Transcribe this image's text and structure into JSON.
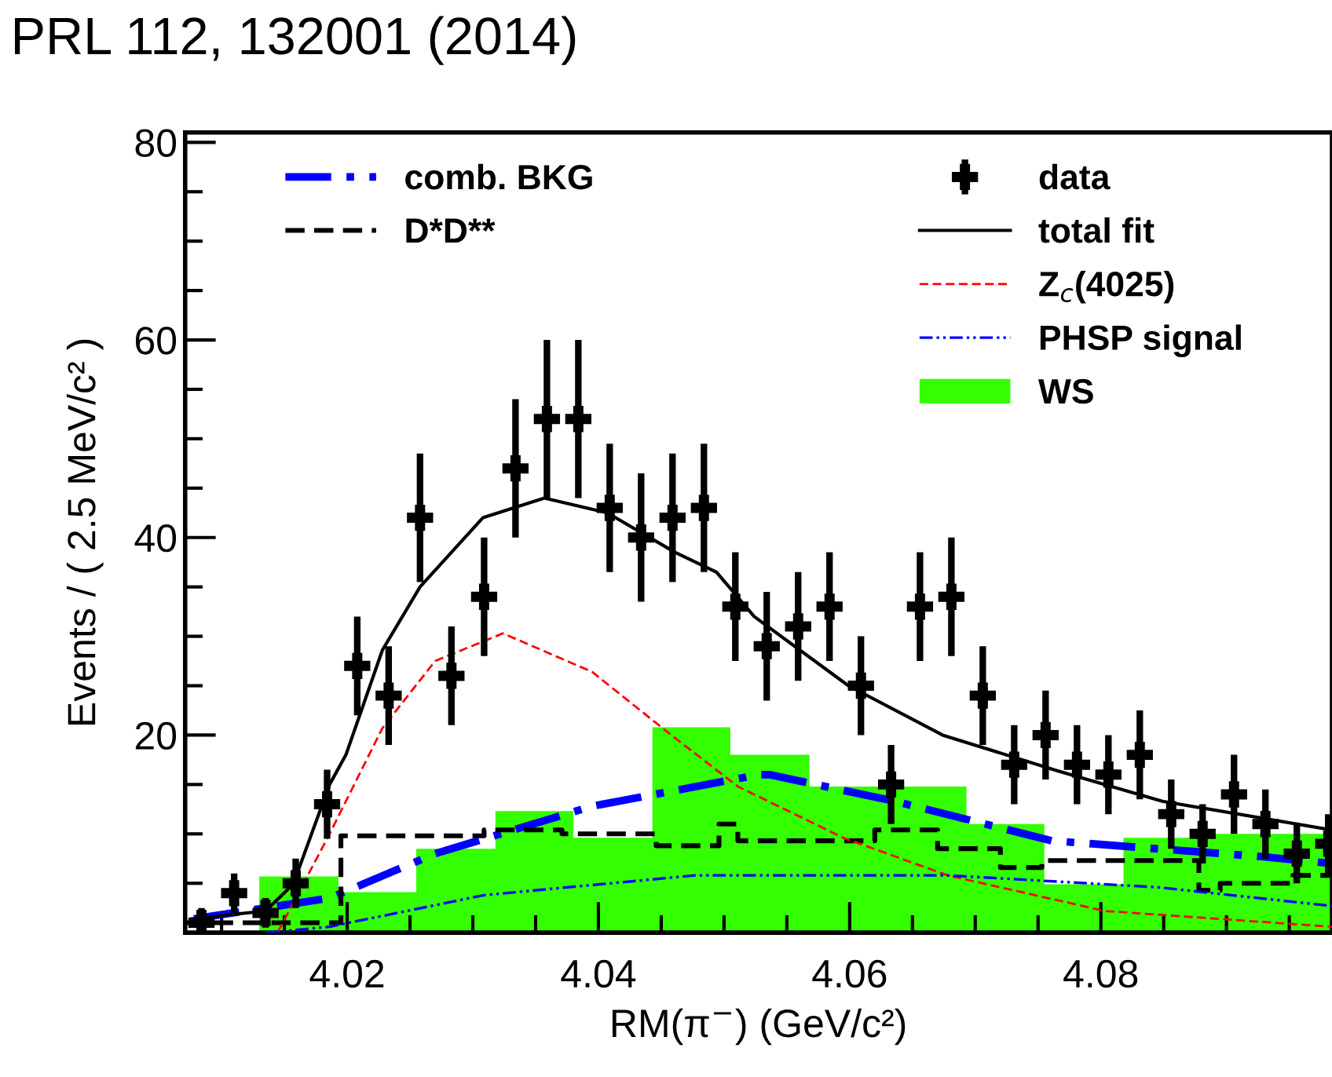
{
  "chart_data": {
    "type": "line",
    "xlabel": "RM(π$^{−}$) (GeV/c²)",
    "ylabel": "Events / ( 2.5 MeV/c² )",
    "annotations": [
      "PRL 112, 132001 (2014)"
    ],
    "xlim": [
      4.0071,
      4.0984
    ],
    "ylim": [
      0,
      81
    ],
    "xticks": [
      {
        "value": 4.01,
        "label": null
      },
      {
        "value": 4.015,
        "label": null
      },
      4.02,
      {
        "value": 4.025,
        "label": null
      },
      {
        "value": 4.03,
        "label": null
      },
      {
        "value": 4.035,
        "label": null
      },
      4.04,
      {
        "value": 4.045,
        "label": null
      },
      {
        "value": 4.05,
        "label": null
      },
      {
        "value": 4.055,
        "label": null
      },
      4.06,
      {
        "value": 4.065,
        "label": null
      },
      {
        "value": 4.07,
        "label": null
      },
      {
        "value": 4.075,
        "label": null
      },
      4.08,
      {
        "value": 4.085,
        "label": null
      },
      {
        "value": 4.09,
        "label": null
      },
      {
        "value": 4.095,
        "label": null
      }
    ],
    "yticks": [
      {
        "value": 5,
        "label": null
      },
      {
        "value": 10,
        "label": null
      },
      {
        "value": 15,
        "label": null
      },
      20,
      {
        "value": 25,
        "label": null
      },
      {
        "value": 30,
        "label": null
      },
      {
        "value": 35,
        "label": null
      },
      40,
      {
        "value": 45,
        "label": null
      },
      {
        "value": 50,
        "label": null
      },
      {
        "value": 55,
        "label": null
      },
      60,
      {
        "value": 65,
        "label": null
      },
      {
        "value": 70,
        "label": null
      },
      {
        "value": 75,
        "label": null
      },
      80
    ],
    "grid": false,
    "legend": "top",
    "series": [
      {
        "name": "comb. BKG",
        "line_style": "dashdot",
        "color": "#0000ff",
        "x": [
          4.0078,
          4.0186,
          4.027,
          4.0395,
          4.0528,
          4.0536,
          4.0636,
          4.0761,
          4.0928,
          4.0984
        ],
        "values": [
          1.4,
          3.5,
          8,
          12.8,
          16,
          16,
          13.3,
          9.3,
          7.7,
          7
        ]
      },
      {
        "name": "D*D**",
        "type": "step",
        "line_style": "dashed",
        "color": "#000000",
        "x": [
          4.0071,
          4.0195,
          4.0309,
          4.0371,
          4.0446,
          4.0496,
          4.0511,
          4.062,
          4.067,
          4.072,
          4.0753,
          4.0878,
          4.0895,
          4.0953,
          4.0984
        ],
        "values": [
          1,
          9.8,
          10.4,
          10,
          8.8,
          11,
          9.3,
          10.4,
          8.5,
          6.6,
          7.3,
          4.3,
          5,
          5.8,
          5.8
        ]
      },
      {
        "name": "data",
        "type": "scatter",
        "marker": "cross",
        "color": "#000000",
        "x": [
          4.0084,
          4.011,
          4.0135,
          4.0159,
          4.0184,
          4.0208,
          4.0233,
          4.0258,
          4.0283,
          4.0309,
          4.0334,
          4.0359,
          4.0384,
          4.0409,
          4.0434,
          4.0459,
          4.0484,
          4.0509,
          4.0534,
          4.0559,
          4.0584,
          4.0609,
          4.0633,
          4.0656,
          4.0681,
          4.0706,
          4.0731,
          4.0756,
          4.0781,
          4.0806,
          4.0831,
          4.0856,
          4.0881,
          4.0906,
          4.0931,
          4.0956,
          4.0981
        ],
        "values": [
          1,
          4,
          2,
          5,
          13,
          27,
          24,
          42,
          26,
          34,
          47,
          52,
          52,
          43,
          40,
          42,
          43,
          33,
          29,
          31,
          33,
          25,
          15,
          33,
          34,
          24,
          17,
          20,
          17,
          16,
          18,
          12,
          10,
          14,
          11,
          8,
          9
        ],
        "errors": [
          1.5,
          2,
          1.5,
          2.5,
          3.5,
          5,
          5,
          6.5,
          5,
          6,
          7,
          8,
          8,
          6.5,
          6.5,
          6.5,
          6.5,
          5.5,
          5.5,
          5.5,
          5.5,
          5,
          4,
          5.5,
          6,
          5,
          4,
          4.5,
          4,
          4,
          4.5,
          3.5,
          3,
          4,
          3.5,
          3,
          3
        ]
      },
      {
        "name": "total fit",
        "line_style": "solid",
        "color": "#000000",
        "x": [
          4.0076,
          4.0135,
          4.0157,
          4.0186,
          4.0199,
          4.0228,
          4.0258,
          4.0308,
          4.0357,
          4.0407,
          4.0461,
          4.0494,
          4.0524,
          4.0599,
          4.0674,
          4.0765,
          4.0849,
          4.0984
        ],
        "values": [
          1.4,
          2.2,
          4.9,
          15,
          18,
          28.6,
          35,
          42,
          44,
          42.5,
          38.5,
          36.5,
          32,
          25,
          20,
          16.4,
          13.3,
          10.4
        ]
      },
      {
        "name": "Z$_{c}$(4025)",
        "line_style": "dashed",
        "color": "#ff0000",
        "x": [
          4.0145,
          4.0186,
          4.0228,
          4.027,
          4.0324,
          4.0395,
          4.0458,
          4.0511,
          4.0595,
          4.0678,
          4.0803,
          4.0984
        ],
        "values": [
          0.1,
          10,
          20.7,
          27.5,
          30.3,
          26.4,
          20,
          14.8,
          9.6,
          5.8,
          2.2,
          0.6
        ]
      },
      {
        "name": "PHSP signal",
        "line_style": "dashdotdot",
        "color": "#0000ff",
        "x": [
          4.0135,
          4.0186,
          4.0309,
          4.0477,
          4.0678,
          4.0845,
          4.0984
        ],
        "values": [
          0,
          0.6,
          3.8,
          5.8,
          5.8,
          4.6,
          2.7
        ]
      },
      {
        "name": "WS",
        "type": "histogram",
        "color": "#33ff00",
        "bins": [
          4.013,
          4.0193,
          4.0255,
          4.0318,
          4.038,
          4.0443,
          4.0505,
          4.0568,
          4.063,
          4.0693,
          4.0755,
          4.0818,
          4.088,
          4.0984
        ],
        "values": [
          5.7,
          4.1,
          8.5,
          12.3,
          9.6,
          20.8,
          18,
          14.8,
          14.8,
          11,
          4.9,
          9.6,
          10
        ]
      }
    ]
  }
}
